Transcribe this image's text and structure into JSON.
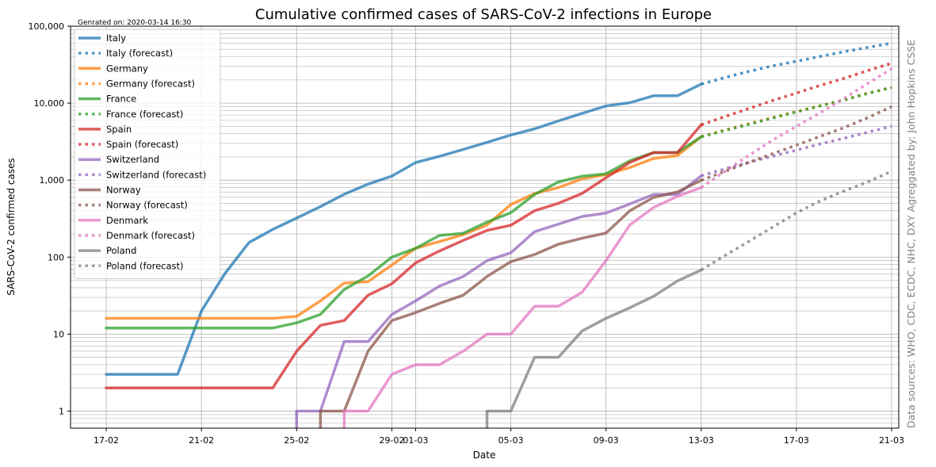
{
  "chart_data": {
    "type": "line",
    "title": "Cumulative confirmed cases of SARS-CoV-2 infections in Europe",
    "generated_note": "Genrated on: 2020-03-14 16:30",
    "xlabel": "Date",
    "ylabel": "SARS-CoV-2 confirmed cases",
    "side_note": "Data sources: WHO, CDC, ECDC, NHC, DXY Agreggated by: John Hopkins CSSE",
    "yscale": "log",
    "ylim": [
      0.6,
      100000
    ],
    "xlim": [
      -1.5,
      33.3
    ],
    "grid": true,
    "legend_position": "top-left",
    "x_ticks": [
      {
        "value": 0,
        "label": "17-02"
      },
      {
        "value": 4,
        "label": "21-02"
      },
      {
        "value": 8,
        "label": "25-02"
      },
      {
        "value": 12,
        "label": "29-02"
      },
      {
        "value": 13,
        "label": "01-03"
      },
      {
        "value": 17,
        "label": "05-03"
      },
      {
        "value": 21,
        "label": "09-03"
      },
      {
        "value": 25,
        "label": "13-03"
      },
      {
        "value": 29,
        "label": "17-03"
      },
      {
        "value": 33,
        "label": "21-03"
      }
    ],
    "y_ticks": [
      {
        "value": 1,
        "label": "1"
      },
      {
        "value": 10,
        "label": "10"
      },
      {
        "value": 100,
        "label": "100"
      },
      {
        "value": 1000,
        "label": "1,000"
      },
      {
        "value": 10000,
        "label": "10,000"
      },
      {
        "value": 100000,
        "label": "100,000"
      }
    ],
    "x_units": "days since 17-02",
    "series": [
      {
        "name": "Italy",
        "color": "#1f77b4",
        "style": "solid",
        "x": [
          0,
          1,
          2,
          3,
          4,
          5,
          6,
          7,
          8,
          9,
          10,
          11,
          12,
          13,
          14,
          15,
          16,
          17,
          18,
          19,
          20,
          21,
          22,
          23,
          24,
          25
        ],
        "y": [
          3,
          3,
          3,
          3,
          20,
          62,
          155,
          229,
          322,
          453,
          655,
          888,
          1128,
          1694,
          2036,
          2502,
          3089,
          3858,
          4636,
          5883,
          7375,
          9172,
          10149,
          12462,
          12462,
          17660
        ]
      },
      {
        "name": "Italy (forecast)",
        "color": "#1f77b4",
        "style": "dotted",
        "x": [
          25,
          26,
          27,
          28,
          29,
          30,
          31,
          32,
          33
        ],
        "y": [
          17660,
          21500,
          25800,
          30500,
          35000,
          40500,
          46500,
          53000,
          60000
        ]
      },
      {
        "name": "Germany",
        "color": "#ff7f0e",
        "style": "solid",
        "x": [
          0,
          1,
          2,
          3,
          4,
          5,
          6,
          7,
          8,
          9,
          10,
          11,
          12,
          13,
          14,
          15,
          16,
          17,
          18,
          19,
          20,
          21,
          22,
          23,
          24,
          25
        ],
        "y": [
          16,
          16,
          16,
          16,
          16,
          16,
          16,
          16,
          17,
          27,
          46,
          48,
          79,
          130,
          159,
          196,
          262,
          482,
          670,
          799,
          1040,
          1176,
          1457,
          1908,
          2078,
          3675
        ]
      },
      {
        "name": "Germany (forecast)",
        "color": "#ff7f0e",
        "style": "dotted",
        "x": [
          25,
          26,
          27,
          28,
          29,
          30,
          31,
          32,
          33
        ],
        "y": [
          3675,
          4500,
          5400,
          6500,
          7800,
          9300,
          11000,
          13500,
          16000
        ]
      },
      {
        "name": "France",
        "color": "#2ca02c",
        "style": "solid",
        "x": [
          0,
          1,
          2,
          3,
          4,
          5,
          6,
          7,
          8,
          9,
          10,
          11,
          12,
          13,
          14,
          15,
          16,
          17,
          18,
          19,
          20,
          21,
          22,
          23,
          24,
          25
        ],
        "y": [
          12,
          12,
          12,
          12,
          12,
          12,
          12,
          12,
          14,
          18,
          38,
          57,
          100,
          130,
          191,
          204,
          285,
          377,
          653,
          949,
          1126,
          1209,
          1784,
          2281,
          2281,
          3661
        ]
      },
      {
        "name": "France (forecast)",
        "color": "#2ca02c",
        "style": "dotted",
        "x": [
          25,
          26,
          27,
          28,
          29,
          30,
          31,
          32,
          33
        ],
        "y": [
          3661,
          4400,
          5300,
          6400,
          7700,
          9200,
          11000,
          13400,
          16000
        ]
      },
      {
        "name": "Spain",
        "color": "#d62728",
        "style": "solid",
        "x": [
          0,
          1,
          2,
          3,
          4,
          5,
          6,
          7,
          8,
          9,
          10,
          11,
          12,
          13,
          14,
          15,
          16,
          17,
          18,
          19,
          20,
          21,
          22,
          23,
          24,
          25
        ],
        "y": [
          2,
          2,
          2,
          2,
          2,
          2,
          2,
          2,
          6,
          13,
          15,
          32,
          45,
          84,
          120,
          165,
          222,
          259,
          400,
          500,
          673,
          1073,
          1695,
          2277,
          2277,
          5232
        ]
      },
      {
        "name": "Spain (forecast)",
        "color": "#d62728",
        "style": "dotted",
        "x": [
          25,
          26,
          27,
          28,
          29,
          30,
          31,
          32,
          33
        ],
        "y": [
          5232,
          6700,
          8500,
          10800,
          13500,
          17000,
          21000,
          26500,
          33000
        ]
      },
      {
        "name": "Switzerland",
        "color": "#9467bd",
        "style": "solid",
        "x": [
          8,
          9,
          10,
          11,
          12,
          13,
          14,
          15,
          16,
          17,
          18,
          19,
          20,
          21,
          22,
          23,
          24,
          25
        ],
        "y": [
          1,
          1,
          8,
          8,
          18,
          27,
          42,
          56,
          90,
          114,
          214,
          268,
          337,
          374,
          491,
          652,
          652,
          1139
        ]
      },
      {
        "name": "Switzerland (forecast)",
        "color": "#9467bd",
        "style": "dotted",
        "x": [
          25,
          26,
          27,
          28,
          29,
          30,
          31,
          32,
          33
        ],
        "y": [
          1139,
          1400,
          1700,
          2050,
          2450,
          2950,
          3500,
          4200,
          5000
        ]
      },
      {
        "name": "Norway",
        "color": "#8c564b",
        "style": "solid",
        "x": [
          9,
          10,
          11,
          12,
          13,
          14,
          15,
          16,
          17,
          18,
          19,
          20,
          21,
          22,
          23,
          24,
          25
        ],
        "y": [
          1,
          1,
          6,
          15,
          19,
          25,
          32,
          56,
          87,
          108,
          147,
          176,
          205,
          400,
          598,
          702,
          996
        ]
      },
      {
        "name": "Norway (forecast)",
        "color": "#8c564b",
        "style": "dotted",
        "x": [
          25,
          26,
          27,
          28,
          29,
          30,
          31,
          32,
          33
        ],
        "y": [
          996,
          1300,
          1700,
          2200,
          2850,
          3700,
          4800,
          6500,
          9000
        ]
      },
      {
        "name": "Denmark",
        "color": "#e377c2",
        "style": "solid",
        "x": [
          10,
          11,
          12,
          13,
          14,
          15,
          16,
          17,
          18,
          19,
          20,
          21,
          22,
          23,
          24,
          25
        ],
        "y": [
          1,
          1,
          3,
          4,
          4,
          6,
          10,
          10,
          23,
          23,
          35,
          90,
          262,
          442,
          615,
          801
        ]
      },
      {
        "name": "Denmark (forecast)",
        "color": "#e377c2",
        "style": "dotted",
        "x": [
          25,
          26,
          27,
          28,
          29,
          30,
          31,
          32,
          33
        ],
        "y": [
          801,
          1300,
          2100,
          3300,
          5000,
          7500,
          11500,
          18000,
          28000
        ]
      },
      {
        "name": "Poland",
        "color": "#7f7f7f",
        "style": "solid",
        "x": [
          16,
          17,
          18,
          19,
          20,
          21,
          22,
          23,
          24,
          25
        ],
        "y": [
          1,
          1,
          5,
          5,
          11,
          16,
          22,
          31,
          49,
          68
        ]
      },
      {
        "name": "Poland (forecast)",
        "color": "#7f7f7f",
        "style": "dotted",
        "x": [
          25,
          26,
          27,
          28,
          29,
          30,
          31,
          32,
          33
        ],
        "y": [
          68,
          105,
          160,
          245,
          375,
          540,
          720,
          950,
          1300
        ]
      }
    ]
  }
}
